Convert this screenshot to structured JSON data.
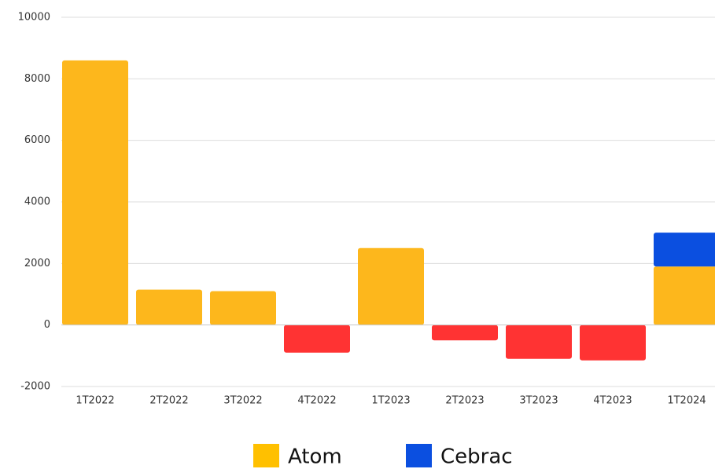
{
  "chart_data": {
    "type": "bar",
    "stacked": true,
    "categories": [
      "1T2022",
      "2T2022",
      "3T2022",
      "4T2022",
      "1T2023",
      "2T2023",
      "3T2023",
      "4T2023",
      "1T2024"
    ],
    "series": [
      {
        "name": "Atom",
        "color": "#fdb71c",
        "negative_color": "#ff3333",
        "legend_color": "#ffc000",
        "values": [
          8600,
          1150,
          1100,
          -900,
          2500,
          -500,
          -1100,
          -1150,
          1900
        ]
      },
      {
        "name": "Cebrac",
        "color": "#0b4fe0",
        "legend_color": "#0b4fe0",
        "values": [
          null,
          null,
          null,
          null,
          null,
          null,
          null,
          null,
          1100
        ]
      }
    ],
    "ylim": [
      -2000,
      10000
    ],
    "yticks": [
      -2000,
      0,
      2000,
      4000,
      6000,
      8000,
      10000
    ],
    "grid": true,
    "legend": "bottom"
  }
}
